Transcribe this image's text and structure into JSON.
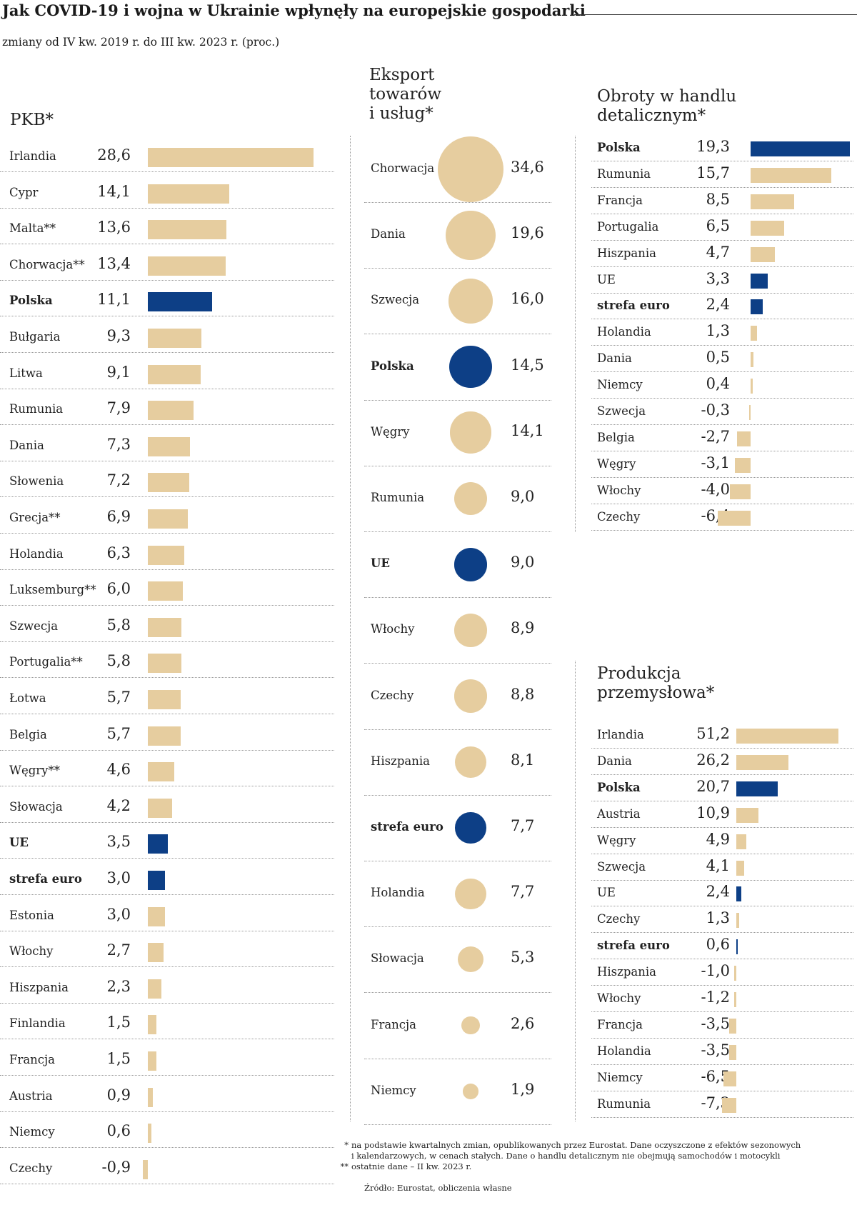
{
  "title": "Jak COVID-19 i wojna w Ukrainie wpłynęły na europejskie gospodarki",
  "subtitle": "zmiany od IV kw. 2019 r. do III kw. 2023 r. (proc.)",
  "colors": {
    "base": "#e6cd9f",
    "highlight": "#0d3f86"
  },
  "chart_data": [
    {
      "type": "bar",
      "title": "PKB*",
      "categories": [
        "Irlandia",
        "Cypr",
        "Malta**",
        "Chorwacja**",
        "Polska",
        "Bułgaria",
        "Litwa",
        "Rumunia",
        "Dania",
        "Słowenia",
        "Grecja**",
        "Holandia",
        "Luksemburg**",
        "Szwecja",
        "Portugalia**",
        "Łotwa",
        "Belgia",
        "Węgry**",
        "Słowacja",
        "UE",
        "strefa euro",
        "Estonia",
        "Włochy",
        "Hiszpania",
        "Finlandia",
        "Francja",
        "Austria",
        "Niemcy",
        "Czechy"
      ],
      "values": [
        28.6,
        14.1,
        13.6,
        13.4,
        11.1,
        9.3,
        9.1,
        7.9,
        7.3,
        7.2,
        6.9,
        6.3,
        6.0,
        5.8,
        5.8,
        5.7,
        5.7,
        4.6,
        4.2,
        3.5,
        3.0,
        3.0,
        2.7,
        2.3,
        1.5,
        1.5,
        0.9,
        0.6,
        -0.9
      ],
      "labels": [
        "28,6",
        "14,1",
        "13,6",
        "13,4",
        "11,1",
        "9,3",
        "9,1",
        "7,9",
        "7,3",
        "7,2",
        "6,9",
        "6,3",
        "6,0",
        "5,8",
        "5,8",
        "5,7",
        "5,7",
        "4,6",
        "4,2",
        "3,5",
        "3,0",
        "3,0",
        "2,7",
        "2,3",
        "1,5",
        "1,5",
        "0,9",
        "0,6",
        "-0,9"
      ],
      "highlighted": [
        "Polska",
        "UE",
        "strefa euro"
      ],
      "bold_labels": [
        "Polska",
        "UE",
        "strefa euro"
      ]
    },
    {
      "type": "scatter",
      "title": "Eksport\ntowarów\ni usług*",
      "categories": [
        "Chorwacja",
        "Dania",
        "Szwecja",
        "Polska",
        "Węgry",
        "Rumunia",
        "UE",
        "Włochy",
        "Czechy",
        "Hiszpania",
        "strefa euro",
        "Holandia",
        "Słowacja",
        "Francja",
        "Niemcy"
      ],
      "values": [
        34.6,
        19.6,
        16.0,
        14.5,
        14.1,
        9.0,
        9.0,
        8.9,
        8.8,
        8.1,
        7.7,
        7.7,
        5.3,
        2.6,
        1.9
      ],
      "labels": [
        "34,6",
        "19,6",
        "16,0",
        "14,5",
        "14,1",
        "9,0",
        "9,0",
        "8,9",
        "8,8",
        "8,1",
        "7,7",
        "7,7",
        "5,3",
        "2,6",
        "1,9"
      ],
      "highlighted": [
        "Polska",
        "UE",
        "strefa euro"
      ],
      "bold_labels": [
        "Polska",
        "UE",
        "strefa euro"
      ]
    },
    {
      "type": "bar",
      "title": "Obroty w handlu\ndetalicznym*",
      "categories": [
        "Polska",
        "Rumunia",
        "Francja",
        "Portugalia",
        "Hiszpania",
        "UE",
        "strefa euro",
        "Holandia",
        "Dania",
        "Niemcy",
        "Szwecja",
        "Belgia",
        "Węgry",
        "Włochy",
        "Czechy"
      ],
      "values": [
        19.3,
        15.7,
        8.5,
        6.5,
        4.7,
        3.3,
        2.4,
        1.3,
        0.5,
        0.4,
        -0.3,
        -2.7,
        -3.1,
        -4.0,
        -6.4
      ],
      "labels": [
        "19,3",
        "15,7",
        "8,5",
        "6,5",
        "4,7",
        "3,3",
        "2,4",
        "1,3",
        "0,5",
        "0,4",
        "-0,3",
        "-2,7",
        "-3,1",
        "-4,0",
        "-6,4"
      ],
      "highlighted": [
        "Polska",
        "UE",
        "strefa euro"
      ],
      "bold_labels": [
        "Polska",
        "strefa euro"
      ]
    },
    {
      "type": "bar",
      "title": "Produkcja\nprzemysłowa*",
      "categories": [
        "Irlandia",
        "Dania",
        "Polska",
        "Austria",
        "Węgry",
        "Szwecja",
        "UE",
        "Czechy",
        "strefa euro",
        "Hiszpania",
        "Włochy",
        "Francja",
        "Holandia",
        "Niemcy",
        "Rumunia"
      ],
      "values": [
        51.2,
        26.2,
        20.7,
        10.9,
        4.9,
        4.1,
        2.4,
        1.3,
        0.6,
        -1.0,
        -1.2,
        -3.5,
        -3.5,
        -6.5,
        -7.3
      ],
      "labels": [
        "51,2",
        "26,2",
        "20,7",
        "10,9",
        "4,9",
        "4,1",
        "2,4",
        "1,3",
        "0,6",
        "-1,0",
        "-1,2",
        "-3,5",
        "-3,5",
        "-6,5",
        "-7,3"
      ],
      "highlighted": [
        "Polska",
        "UE",
        "strefa euro"
      ],
      "bold_labels": [
        "Polska",
        "strefa euro"
      ]
    }
  ],
  "footnotes": [
    {
      "marker": "*",
      "text": "na podstawie kwartalnych zmian, opublikowanych przez Eurostat. Dane oczyszczone z efektów sezonowych"
    },
    {
      "marker": "",
      "text": "i kalendarzowych, w cenach stałych. Dane o handlu detalicznym nie obejmują samochodów i motocykli"
    },
    {
      "marker": "**",
      "text": "ostatnie dane – II kw. 2023 r."
    }
  ],
  "source": "Źródło: Eurostat, obliczenia własne"
}
